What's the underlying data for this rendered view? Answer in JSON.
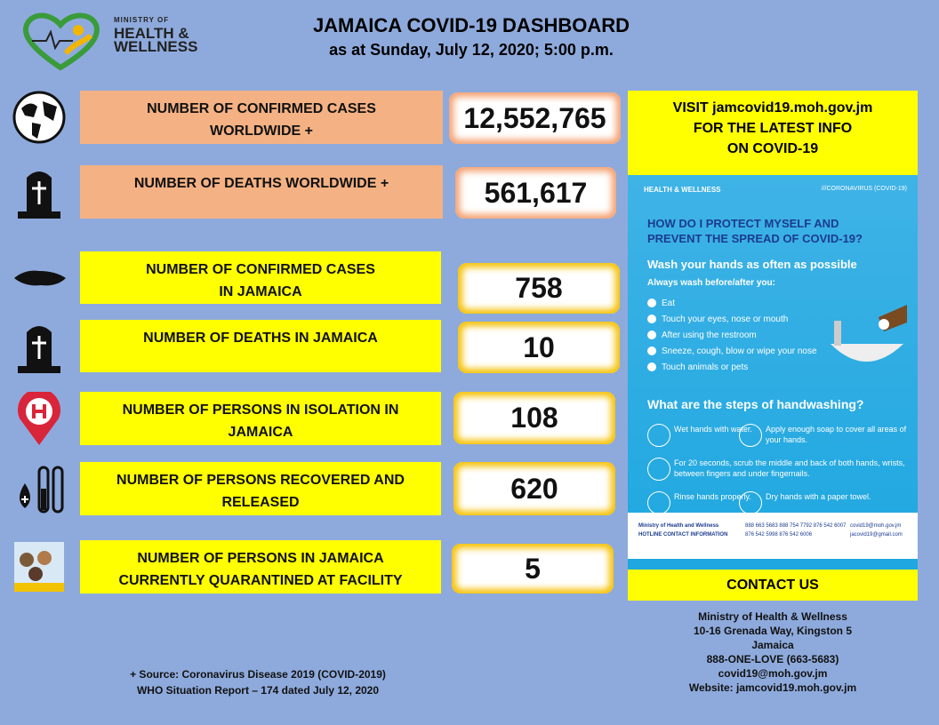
{
  "header": {
    "logo": [
      "MINISTRY OF",
      "HEALTH &",
      "WELLNESS"
    ],
    "title": "JAMAICA COVID-19 DASHBOARD",
    "subtitle": "as at Sunday, July 12, 2020; 5:00 p.m."
  },
  "stats": [
    {
      "label": [
        "NUMBER OF CONFIRMED CASES",
        "WORLDWIDE +"
      ],
      "value": "12,552,765"
    },
    {
      "label": [
        "NUMBER OF DEATHS WORLDWIDE +"
      ],
      "value": "561,617"
    },
    {
      "label": [
        "NUMBER OF CONFIRMED CASES",
        "IN JAMAICA"
      ],
      "value": "758"
    },
    {
      "label": [
        "NUMBER OF DEATHS IN JAMAICA"
      ],
      "value": "10"
    },
    {
      "label": [
        "NUMBER OF PERSONS IN ISOLATION IN",
        "JAMAICA"
      ],
      "value": "108"
    },
    {
      "label": [
        "NUMBER OF PERSONS RECOVERED AND",
        "RELEASED"
      ],
      "value": "620"
    },
    {
      "label": [
        "NUMBER OF PERSONS IN JAMAICA",
        "CURRENTLY QUARANTINED AT FACILITY"
      ],
      "value": "5"
    }
  ],
  "visit": [
    "VISIT  jamcovid19.moh.gov.jm",
    "FOR THE LATEST INFO",
    "ON COVID-19"
  ],
  "poster": {
    "logo": "HEALTH & WELLNESS",
    "tag": "///CORONAVIRUS (COVID-19)",
    "question": [
      "HOW DO I PROTECT MYSELF AND",
      "PREVENT THE SPREAD OF COVID-19?"
    ],
    "wash": "Wash your hands as often as possible",
    "always": "Always wash before/after you:",
    "items": [
      "Eat",
      "Touch your eyes, nose or mouth",
      "After using the restroom",
      "Sneeze, cough, blow or wipe your nose",
      "Touch animals or pets"
    ],
    "steps_title": "What are the steps of handwashing?",
    "steps": [
      "Wet hands with water.",
      "Apply enough soap to cover all areas of your hands.",
      "For 20 seconds, scrub the middle and back of both hands, wrists, between fingers and under fingernails.",
      "Rinse hands properly.",
      "Dry hands with a paper towel."
    ],
    "hotline": [
      "Ministry of Health and Wellness",
      "HOTLINE CONTACT INFORMATION"
    ],
    "phones": [
      "888 663 5683   888 754 7792   876 542 6007",
      "876 542 5998   876 542 6006"
    ],
    "emails": [
      "covid19@moh.gov.jm",
      "jacovid19@gmail.com"
    ]
  },
  "contact": {
    "title": "CONTACT US",
    "lines": [
      "Ministry of Health & Wellness",
      "10-16 Grenada Way, Kingston 5",
      "Jamaica",
      "888-ONE-LOVE (663-5683)",
      "covid19@moh.gov.jm",
      "Website: jamcovid19.moh.gov.jm"
    ]
  },
  "source": [
    "+ Source: Coronavirus Disease 2019 (COVID-2019)",
    "WHO Situation Report – 174 dated July 12, 2020"
  ]
}
